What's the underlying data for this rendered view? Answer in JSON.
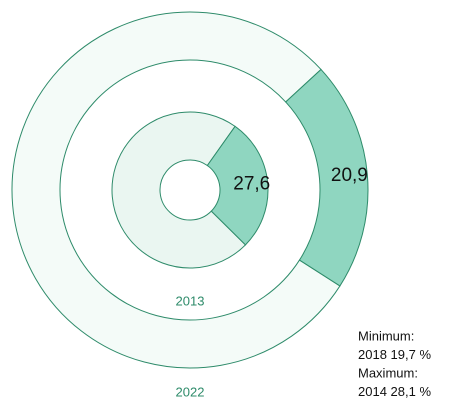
{
  "chart_data": {
    "type": "donut",
    "ylim": [
      0,
      100
    ],
    "series": [
      {
        "name": "2022",
        "values": [
          20.9
        ],
        "value_labels": [
          "20,9"
        ],
        "color": "#8fd6c0",
        "rest_color": "#f4fbf8"
      },
      {
        "name": "2013",
        "values": [
          27.6
        ],
        "value_labels": [
          "27,6"
        ],
        "color": "#8fd6c0",
        "rest_color": "#eaf6f1"
      }
    ],
    "annotations": [
      "Minimum:",
      "2018 19,7 %",
      "Maximum:",
      "2014 28,1 %"
    ],
    "stroke": "#2e8b6a"
  }
}
